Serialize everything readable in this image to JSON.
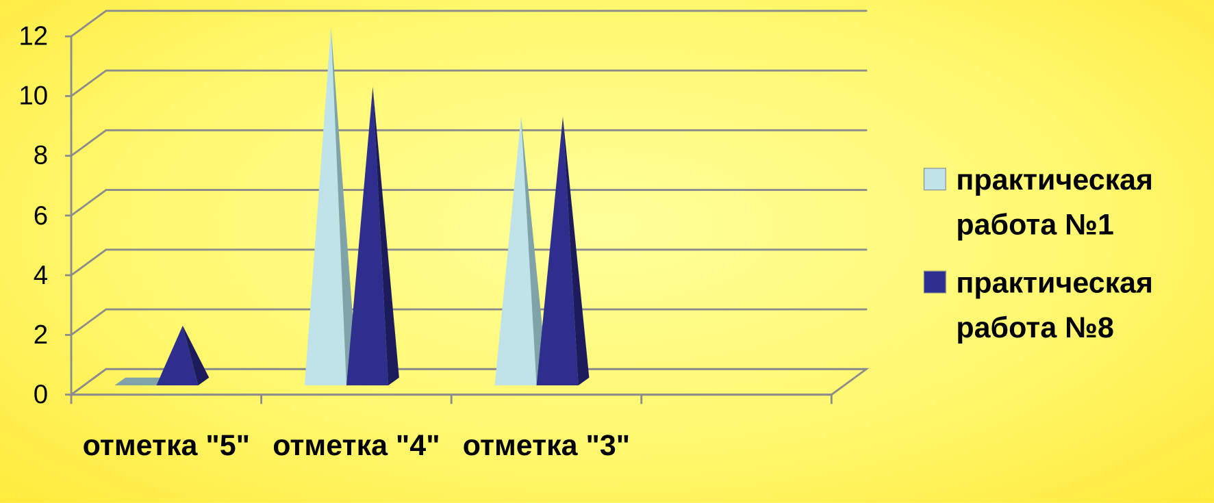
{
  "chart_data": {
    "type": "pyramid",
    "categories": [
      "отметка \"5\"",
      "отметка \"4\"",
      "отметка \"3\"",
      null
    ],
    "series": [
      {
        "name": "практическая работа №1",
        "color": "#bfe3e8",
        "values": [
          0,
          12,
          9,
          null
        ]
      },
      {
        "name": "практическая работа №8",
        "color": "#2e2e8f",
        "values": [
          2,
          10,
          9,
          null
        ]
      }
    ],
    "ylim": [
      0,
      12
    ],
    "yticks": [
      0,
      2,
      4,
      6,
      8,
      10,
      12
    ],
    "grid": true,
    "legend": "right"
  }
}
